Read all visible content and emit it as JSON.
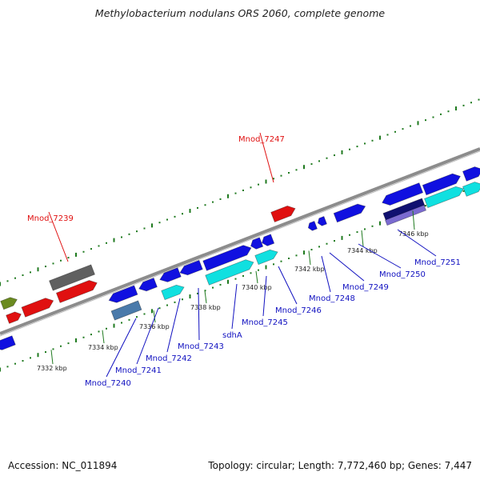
{
  "title": "Methylobacterium nodulans ORS 2060, complete genome",
  "footer": {
    "accession": "Accession: NC_011894",
    "summary": "Topology: circular; Length: 7,772,460 bp; Genes: 7,447"
  },
  "colors": {
    "backbone": "#8c8c8c",
    "tick": "#1f7a1f",
    "gene_blue": "#1010e0",
    "gene_red": "#e01010",
    "gene_cyan": "#10e0e0",
    "gene_gray": "#606060",
    "gene_olive": "#6a8a20",
    "gene_steel": "#4a7aaa",
    "gene_navy": "#101070",
    "gene_violet": "#7a6ad0",
    "label_black": "#000000",
    "label_red": "#e01010",
    "label_blue": "#1010c0"
  },
  "scale_labels": [
    "7332 kbp",
    "7334 kbp",
    "7336 kbp",
    "7338 kbp",
    "7340 kbp",
    "7342 kbp",
    "7344 kbp",
    "7346 kbp"
  ],
  "gene_labels": [
    {
      "text": "Mnod_7239",
      "color": "red"
    },
    {
      "text": "Mnod_7247",
      "color": "red"
    },
    {
      "text": "Mnod_7240",
      "color": "blue"
    },
    {
      "text": "Mnod_7241",
      "color": "blue"
    },
    {
      "text": "Mnod_7242",
      "color": "blue"
    },
    {
      "text": "Mnod_7243",
      "color": "blue"
    },
    {
      "text": "sdhA",
      "color": "blue"
    },
    {
      "text": "Mnod_7245",
      "color": "blue"
    },
    {
      "text": "Mnod_7246",
      "color": "blue"
    },
    {
      "text": "Mnod_7248",
      "color": "blue"
    },
    {
      "text": "Mnod_7249",
      "color": "blue"
    },
    {
      "text": "Mnod_7250",
      "color": "blue"
    },
    {
      "text": "Mnod_7251",
      "color": "blue"
    }
  ]
}
